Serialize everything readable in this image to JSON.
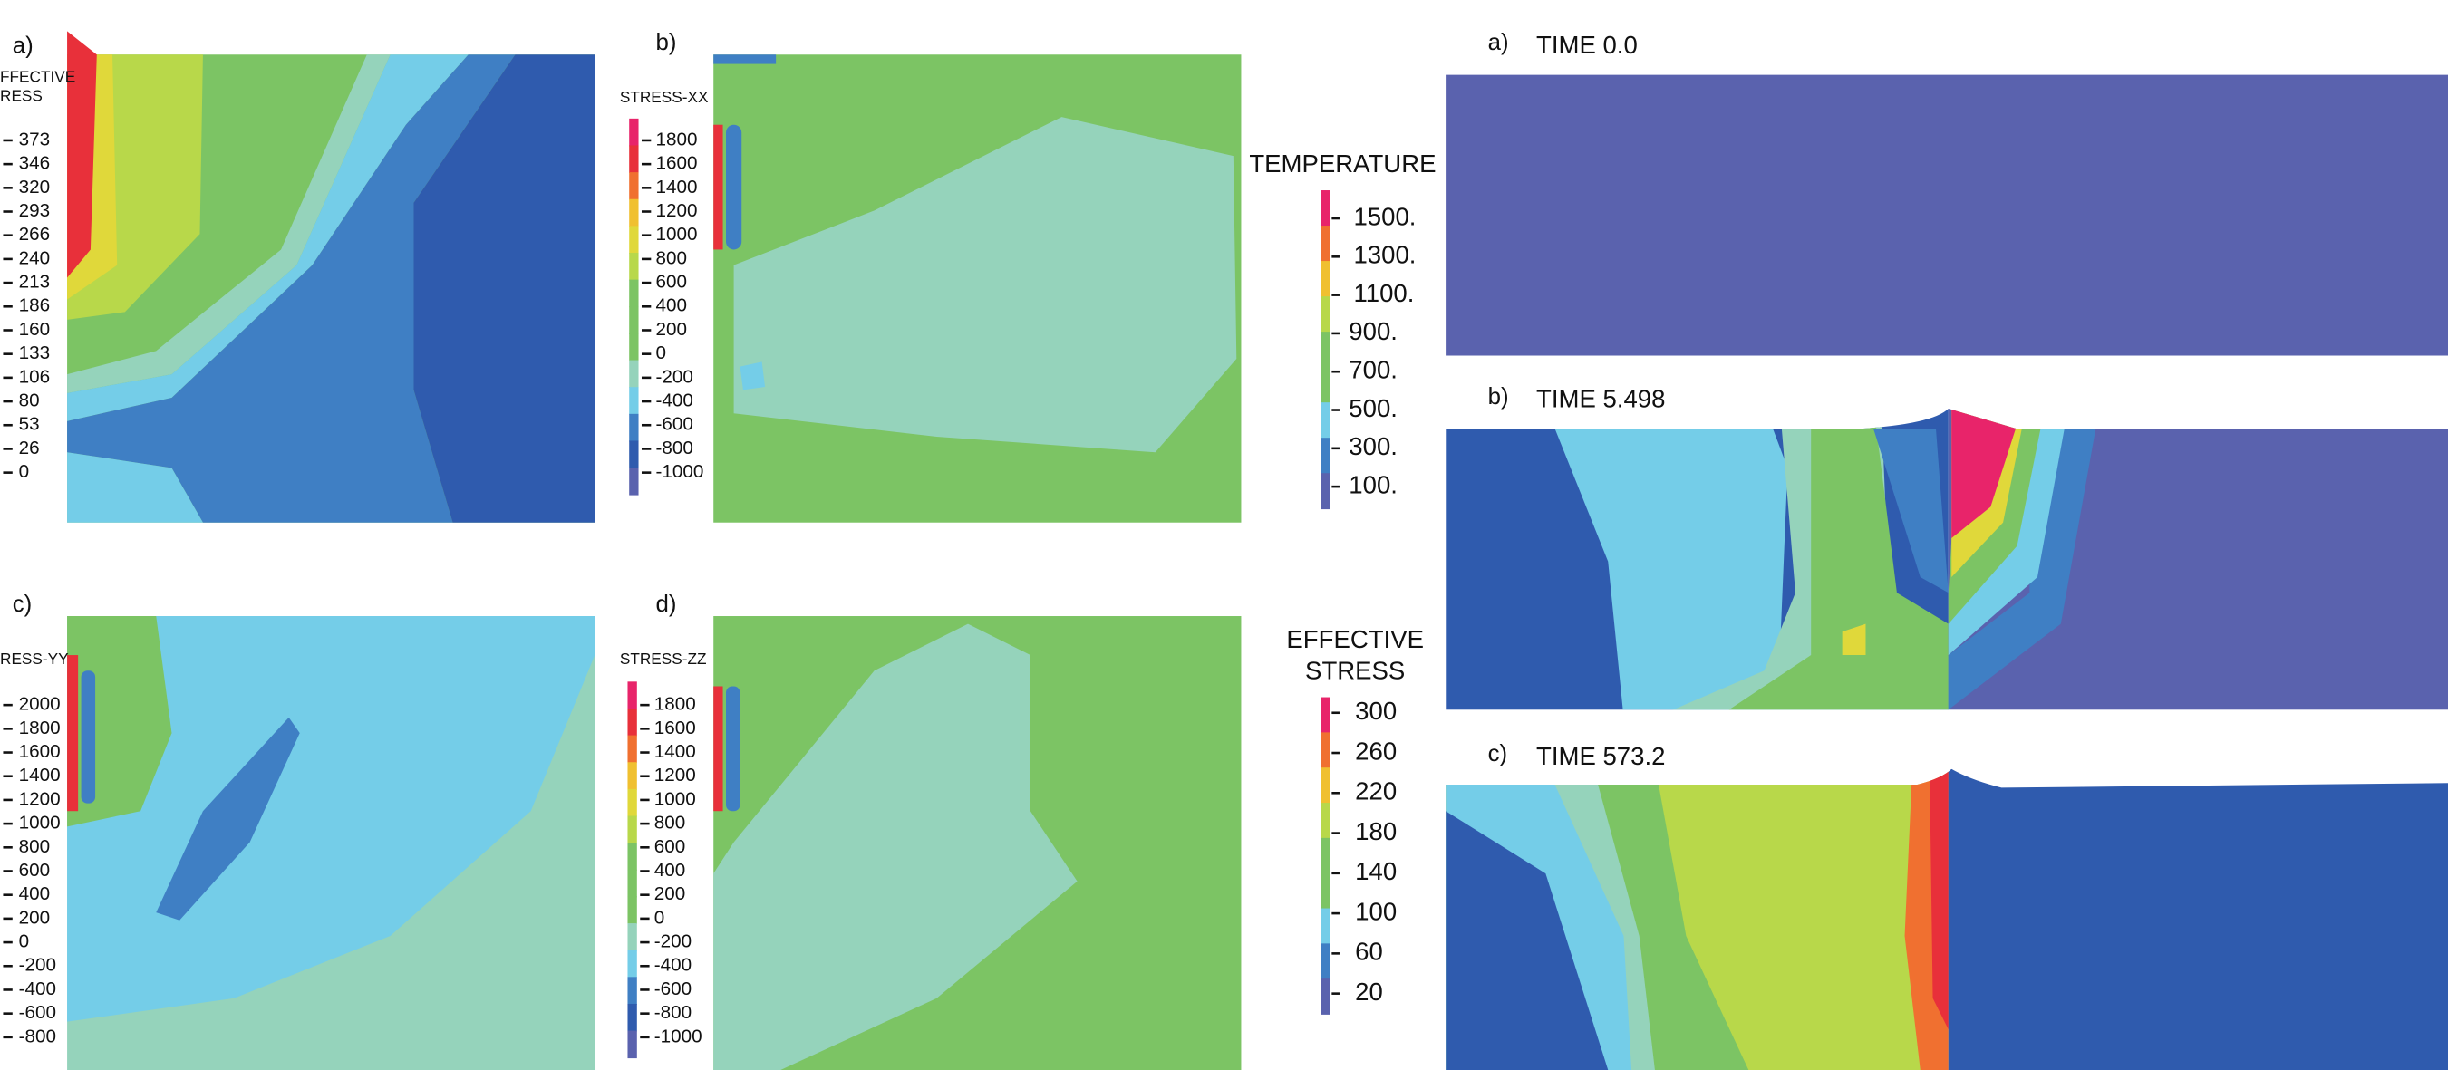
{
  "panels_left": [
    {
      "label": "a)",
      "title": [
        "FFECTIVE",
        "RESS"
      ],
      "ticks": [
        "373",
        "346",
        "320",
        "293",
        "266",
        "240",
        "213",
        "186",
        "160",
        "133",
        "106",
        "80",
        "53",
        "26",
        "0"
      ]
    },
    {
      "label": "b)",
      "title": [
        "STRESS-XX"
      ],
      "ticks": [
        "1800",
        "1600",
        "1400",
        "1200",
        "1000",
        "800",
        "600",
        "400",
        "200",
        "0",
        "-200",
        "-400",
        "-600",
        "-800",
        "-1000"
      ]
    },
    {
      "label": "c)",
      "title": [
        "RESS-YY"
      ],
      "ticks": [
        "2000",
        "1800",
        "1600",
        "1400",
        "1200",
        "1000",
        "800",
        "600",
        "400",
        "200",
        "0",
        "-200",
        "-400",
        "-600",
        "-800"
      ]
    },
    {
      "label": "d)",
      "title": [
        "STRESS-ZZ"
      ],
      "ticks": [
        "1800",
        "1600",
        "1400",
        "1200",
        "1000",
        "800",
        "600",
        "400",
        "200",
        "0",
        "-200",
        "-400",
        "-600",
        "-800",
        "-1000"
      ]
    }
  ],
  "temperature": {
    "title": [
      "TEMPERATURE"
    ],
    "ticks": [
      "1500.",
      "1300.",
      "1100.",
      "900.",
      "700.",
      "500.",
      "300.",
      "100."
    ]
  },
  "effective_stress": {
    "title": [
      "EFFECTIVE",
      "STRESS"
    ],
    "ticks": [
      "300",
      "260",
      "220",
      "180",
      "140",
      "100",
      "60",
      "20"
    ]
  },
  "time_panels": [
    {
      "label": "a)",
      "title": "TIME 0.0"
    },
    {
      "label": "b)",
      "title": "TIME 5.498"
    },
    {
      "label": "c)",
      "title": "TIME 573.2"
    }
  ]
}
